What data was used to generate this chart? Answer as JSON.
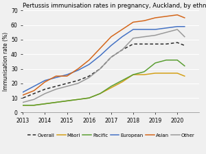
{
  "title": "Pertussis immunisation rates in pregnancy, Auckland, by ethnicity",
  "ylabel": "Immunisation rate (%)",
  "years": [
    2013,
    2013.5,
    2014,
    2014.5,
    2015,
    2015.5,
    2016,
    2016.5,
    2017,
    2017.5,
    2018,
    2018.5,
    2019,
    2019.5,
    2020,
    2020.33
  ],
  "overall": [
    10,
    13,
    16,
    18,
    20,
    22,
    25,
    30,
    38,
    43,
    47,
    47,
    47,
    47,
    48,
    46
  ],
  "maori": [
    5,
    5,
    6,
    7,
    8,
    9,
    10,
    13,
    17,
    21,
    26,
    26,
    27,
    27,
    27,
    25
  ],
  "pacific": [
    5,
    5,
    6,
    7,
    8,
    9,
    10,
    13,
    18,
    22,
    26,
    28,
    34,
    36,
    36,
    32
  ],
  "european": [
    14,
    18,
    22,
    24,
    26,
    29,
    33,
    39,
    46,
    52,
    57,
    57,
    57,
    58,
    59,
    59
  ],
  "asian": [
    12,
    15,
    21,
    25,
    25,
    30,
    36,
    44,
    52,
    57,
    62,
    63,
    65,
    66,
    67,
    65
  ],
  "other": [
    7,
    9,
    13,
    16,
    18,
    20,
    24,
    30,
    38,
    43,
    51,
    52,
    53,
    55,
    57,
    52
  ],
  "colors": {
    "overall": "#2b2b2b",
    "maori": "#d4a017",
    "pacific": "#5a9e32",
    "european": "#4472c4",
    "asian": "#d4661a",
    "other": "#999999"
  },
  "ylim": [
    0,
    70
  ],
  "xlim": [
    2013,
    2021
  ],
  "background_color": "#f0f0f0",
  "plot_bg": "#f0f0f0",
  "title_fontsize": 6.2,
  "tick_fontsize": 5.5,
  "ylabel_fontsize": 5.5,
  "legend_fontsize": 5.0,
  "linewidth": 1.1
}
